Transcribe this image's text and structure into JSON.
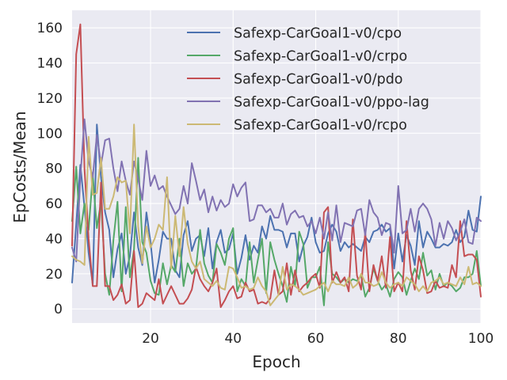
{
  "chart_data": {
    "type": "line",
    "title": "",
    "xlabel": "Epoch",
    "ylabel": "EpCosts/Mean",
    "xlim": [
      1,
      100
    ],
    "ylim": [
      -8,
      170
    ],
    "xticks": [
      20,
      40,
      60,
      80,
      100
    ],
    "yticks": [
      0,
      20,
      40,
      60,
      80,
      100,
      120,
      140,
      160
    ],
    "grid": true,
    "legend_position": "top-right",
    "x": [
      1,
      2,
      3,
      4,
      5,
      6,
      7,
      8,
      9,
      10,
      11,
      12,
      13,
      14,
      15,
      16,
      17,
      18,
      19,
      20,
      21,
      22,
      23,
      24,
      25,
      26,
      27,
      28,
      29,
      30,
      31,
      32,
      33,
      34,
      35,
      36,
      37,
      38,
      39,
      40,
      41,
      42,
      43,
      44,
      45,
      46,
      47,
      48,
      49,
      50,
      51,
      52,
      53,
      54,
      55,
      56,
      57,
      58,
      59,
      60,
      61,
      62,
      63,
      64,
      65,
      66,
      67,
      68,
      69,
      70,
      71,
      72,
      73,
      74,
      75,
      76,
      77,
      78,
      79,
      80,
      81,
      82,
      83,
      84,
      85,
      86,
      87,
      88,
      89,
      90,
      91,
      92,
      93,
      94,
      95,
      96,
      97,
      98,
      99,
      100
    ],
    "series": [
      {
        "name": "Safexp-CarGoal1-v0/cpo",
        "color": "#4c72b0",
        "values": [
          15,
          48,
          82,
          58,
          32,
          14,
          105,
          75,
          55,
          45,
          18,
          34,
          43,
          20,
          30,
          55,
          35,
          25,
          55,
          38,
          15,
          28,
          44,
          40,
          40,
          22,
          18,
          42,
          50,
          33,
          40,
          42,
          30,
          46,
          23,
          38,
          45,
          32,
          34,
          43,
          20,
          29,
          42,
          28,
          36,
          32,
          47,
          40,
          53,
          45,
          45,
          44,
          35,
          43,
          43,
          27,
          36,
          41,
          52,
          38,
          32,
          33,
          43,
          48,
          44,
          33,
          38,
          35,
          37,
          35,
          33,
          41,
          38,
          44,
          45,
          48,
          44,
          46,
          23,
          43,
          27,
          42,
          36,
          25,
          50,
          35,
          44,
          40,
          35,
          35,
          37,
          36,
          38,
          45,
          38,
          41,
          56,
          45,
          44,
          64
        ]
      },
      {
        "name": "Safexp-CarGoal1-v0/crpo",
        "color": "#55a868",
        "values": [
          50,
          81,
          43,
          60,
          45,
          76,
          46,
          61,
          20,
          8,
          39,
          61,
          10,
          58,
          18,
          34,
          86,
          38,
          32,
          16,
          9,
          8,
          26,
          14,
          25,
          21,
          40,
          13,
          26,
          20,
          23,
          45,
          26,
          19,
          15,
          37,
          32,
          25,
          40,
          46,
          10,
          17,
          13,
          38,
          15,
          28,
          40,
          9,
          38,
          28,
          20,
          13,
          4,
          24,
          13,
          44,
          37,
          12,
          18,
          18,
          24,
          2,
          38,
          20,
          18,
          15,
          17,
          15,
          17,
          16,
          19,
          7,
          12,
          23,
          16,
          11,
          14,
          7,
          17,
          21,
          18,
          8,
          16,
          23,
          17,
          32,
          19,
          22,
          11,
          20,
          13,
          15,
          13,
          10,
          12,
          18,
          18,
          20,
          33,
          13
        ]
      },
      {
        "name": "Safexp-CarGoal1-v0/pdo",
        "color": "#c44e52",
        "values": [
          36,
          145,
          162,
          80,
          40,
          13,
          13,
          72,
          13,
          13,
          5,
          8,
          14,
          3,
          5,
          33,
          1,
          3,
          9,
          7,
          5,
          17,
          3,
          8,
          13,
          8,
          3,
          3,
          6,
          11,
          24,
          17,
          13,
          10,
          15,
          23,
          1,
          5,
          10,
          13,
          6,
          7,
          15,
          10,
          11,
          3,
          4,
          3,
          6,
          22,
          8,
          10,
          26,
          8,
          22,
          10,
          13,
          15,
          18,
          20,
          12,
          55,
          58,
          15,
          21,
          15,
          18,
          10,
          51,
          19,
          11,
          44,
          10,
          25,
          16,
          30,
          12,
          41,
          10,
          15,
          10,
          50,
          22,
          11,
          30,
          22,
          9,
          10,
          16,
          12,
          13,
          12,
          25,
          18,
          50,
          30,
          31,
          31,
          28,
          7
        ]
      },
      {
        "name": "Safexp-CarGoal1-v0/ppo-lag",
        "color": "#8172b2",
        "values": [
          35,
          27,
          75,
          108,
          84,
          75,
          99,
          82,
          96,
          97,
          80,
          67,
          84,
          73,
          65,
          84,
          74,
          62,
          90,
          70,
          76,
          68,
          70,
          64,
          59,
          54,
          57,
          70,
          60,
          83,
          73,
          62,
          68,
          55,
          64,
          56,
          62,
          58,
          60,
          71,
          64,
          69,
          72,
          50,
          51,
          59,
          59,
          55,
          57,
          52,
          52,
          60,
          48,
          54,
          56,
          52,
          53,
          47,
          50,
          43,
          52,
          40,
          55,
          39,
          59,
          38,
          49,
          48,
          47,
          56,
          57,
          42,
          62,
          55,
          52,
          42,
          49,
          48,
          32,
          70,
          43,
          45,
          57,
          44,
          57,
          60,
          57,
          51,
          36,
          49,
          40,
          50,
          46,
          39,
          44,
          51,
          38,
          37,
          52,
          50
        ]
      },
      {
        "name": "Safexp-CarGoal1-v0/rcpo",
        "color": "#ccb974",
        "values": [
          30,
          28,
          27,
          25,
          98,
          65,
          66,
          86,
          57,
          57,
          64,
          75,
          72,
          73,
          43,
          105,
          47,
          26,
          47,
          35,
          40,
          48,
          45,
          75,
          23,
          53,
          30,
          58,
          37,
          27,
          23,
          27,
          17,
          15,
          13,
          16,
          12,
          11,
          24,
          23,
          18,
          12,
          13,
          11,
          12,
          18,
          13,
          10,
          2,
          5,
          8,
          24,
          11,
          14,
          13,
          11,
          8,
          9,
          10,
          11,
          13,
          15,
          10,
          16,
          14,
          14,
          13,
          18,
          12,
          14,
          20,
          15,
          15,
          13,
          14,
          21,
          15,
          12,
          14,
          15,
          13,
          18,
          16,
          14,
          10,
          13,
          10,
          15,
          16,
          18,
          14,
          15,
          14,
          13,
          18,
          14,
          24,
          14,
          15,
          13
        ]
      }
    ]
  }
}
